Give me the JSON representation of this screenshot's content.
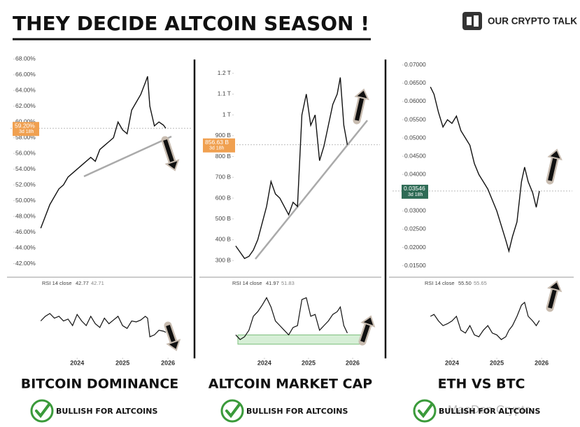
{
  "header": {
    "title": "THEY DECIDE ALTCOIN SEASON !",
    "brand": "OUR CRYPTO TALK",
    "watermark": "MaoDen Crypto"
  },
  "chart_data": [
    {
      "type": "line",
      "caption": "BITCOIN DOMINANCE",
      "verdict": "BULLISH FOR ALTCOINS",
      "color": "#111111",
      "x": [
        2023.2,
        2023.3,
        2023.4,
        2023.5,
        2023.6,
        2023.7,
        2023.8,
        2023.9,
        2024.0,
        2024.1,
        2024.2,
        2024.3,
        2024.4,
        2024.5,
        2024.6,
        2024.7,
        2024.8,
        2024.9,
        2025.0,
        2025.1,
        2025.2,
        2025.3,
        2025.4,
        2025.5,
        2025.55,
        2025.6,
        2025.7,
        2025.8,
        2025.9,
        2025.95
      ],
      "values": [
        46.5,
        48,
        49.5,
        50.5,
        51.5,
        52,
        53,
        53.5,
        54,
        54.5,
        55,
        55.5,
        55,
        56.5,
        57,
        57.5,
        58,
        60,
        59,
        58.5,
        61.5,
        62.5,
        63.5,
        65,
        65.8,
        62,
        59.5,
        60,
        59.6,
        59.2
      ],
      "xlim": [
        2023.15,
        2026.49
      ],
      "xticks": [
        2024,
        2025,
        2026
      ],
      "ylim": [
        40.8,
        69.1
      ],
      "yticks": [
        {
          "value": 68,
          "label": "68.00%"
        },
        {
          "value": 66,
          "label": "66.00%"
        },
        {
          "value": 64,
          "label": "64.00%"
        },
        {
          "value": 62,
          "label": "62.00%"
        },
        {
          "value": 60,
          "label": "60.00%"
        },
        {
          "value": 58,
          "label": "58.00%"
        },
        {
          "value": 56,
          "label": "56.00%"
        },
        {
          "value": 54,
          "label": "54.00%"
        },
        {
          "value": 52,
          "label": "52.00%"
        },
        {
          "value": 50,
          "label": "50.00%"
        },
        {
          "value": 48,
          "label": "48.00%"
        },
        {
          "value": 46,
          "label": "46.00%"
        },
        {
          "value": 44,
          "label": "44.00%"
        },
        {
          "value": 42,
          "label": "42.00%"
        }
      ],
      "current": {
        "value": 59.2,
        "label": "59.20%",
        "countdown": "3d 18h",
        "color": "#f0a050"
      },
      "rsi": {
        "label": "RSI 14 close",
        "readout": [
          "42.77",
          "42.71"
        ],
        "ylim": [
          20,
          90
        ],
        "values": [
          55,
          60,
          63,
          58,
          60,
          55,
          57,
          50,
          62,
          55,
          50,
          60,
          52,
          48,
          58,
          52,
          56,
          60,
          50,
          47,
          55,
          54,
          56,
          60,
          58,
          38,
          40,
          45,
          44,
          42.77
        ]
      }
    },
    {
      "type": "line",
      "caption": "ALTCOIN MARKET CAP",
      "verdict": "BULLISH FOR ALTCOINS",
      "color": "#111111",
      "x": [
        2023.35,
        2023.45,
        2023.55,
        2023.65,
        2023.75,
        2023.85,
        2023.95,
        2024.05,
        2024.15,
        2024.25,
        2024.35,
        2024.45,
        2024.55,
        2024.65,
        2024.75,
        2024.85,
        2024.95,
        2025.05,
        2025.15,
        2025.25,
        2025.35,
        2025.45,
        2025.55,
        2025.65,
        2025.72,
        2025.8,
        2025.88
      ],
      "values": [
        370,
        340,
        310,
        320,
        350,
        400,
        480,
        560,
        680,
        620,
        600,
        560,
        520,
        580,
        560,
        1000,
        1100,
        950,
        1000,
        780,
        850,
        950,
        1050,
        1100,
        1180,
        950,
        856.63
      ],
      "xlim": [
        2023.32,
        2026.57
      ],
      "xticks": [
        2024,
        2025,
        2026
      ],
      "ylim": [
        240,
        1310
      ],
      "yticks": [
        {
          "value": 1200,
          "label": "1.2 T"
        },
        {
          "value": 1100,
          "label": "1.1 T"
        },
        {
          "value": 1000,
          "label": "1 T"
        },
        {
          "value": 900,
          "label": "900 B"
        },
        {
          "value": 800,
          "label": "800 B"
        },
        {
          "value": 700,
          "label": "700 B"
        },
        {
          "value": 600,
          "label": "600 B"
        },
        {
          "value": 500,
          "label": "500 B"
        },
        {
          "value": 400,
          "label": "400 B"
        },
        {
          "value": 300,
          "label": "300 B"
        }
      ],
      "current": {
        "value": 856.63,
        "label": "856.63 B",
        "countdown": "3d 18h",
        "color": "#f0a050"
      },
      "rsi": {
        "label": "RSI 14 close",
        "readout": [
          "41.97",
          "51.83"
        ],
        "ylim": [
          20,
          90
        ],
        "values": [
          40,
          35,
          38,
          45,
          60,
          65,
          72,
          80,
          70,
          55,
          50,
          45,
          40,
          48,
          50,
          78,
          80,
          60,
          62,
          45,
          50,
          55,
          62,
          65,
          70,
          50,
          41.97
        ]
      }
    },
    {
      "type": "line",
      "caption": "ETH VS BTC",
      "verdict": "BULLISH FOR ALTCOINS",
      "color": "#111111",
      "x": [
        2023.52,
        2023.6,
        2023.7,
        2023.8,
        2023.9,
        2024.0,
        2024.1,
        2024.2,
        2024.3,
        2024.4,
        2024.5,
        2024.6,
        2024.7,
        2024.8,
        2024.9,
        2025.0,
        2025.1,
        2025.2,
        2025.27,
        2025.35,
        2025.45,
        2025.55,
        2025.62,
        2025.7,
        2025.8,
        2025.88,
        2025.95
      ],
      "values": [
        0.064,
        0.062,
        0.057,
        0.053,
        0.055,
        0.054,
        0.056,
        0.052,
        0.05,
        0.048,
        0.043,
        0.04,
        0.038,
        0.036,
        0.033,
        0.03,
        0.026,
        0.022,
        0.019,
        0.023,
        0.027,
        0.038,
        0.042,
        0.038,
        0.035,
        0.031,
        0.03546
      ],
      "xlim": [
        2023.47,
        2026.59
      ],
      "xticks": [
        2024,
        2025,
        2026
      ],
      "ylim": [
        0.013,
        0.074
      ],
      "yticks": [
        {
          "value": 0.07,
          "label": "0.07000"
        },
        {
          "value": 0.065,
          "label": "0.06500"
        },
        {
          "value": 0.06,
          "label": "0.06000"
        },
        {
          "value": 0.055,
          "label": "0.05500"
        },
        {
          "value": 0.05,
          "label": "0.05000"
        },
        {
          "value": 0.045,
          "label": "0.04500"
        },
        {
          "value": 0.04,
          "label": "0.04000"
        },
        {
          "value": 0.035,
          "label": "0.03500"
        },
        {
          "value": 0.03,
          "label": "0.03000"
        },
        {
          "value": 0.025,
          "label": "0.02500"
        },
        {
          "value": 0.02,
          "label": "0.02000"
        },
        {
          "value": 0.015,
          "label": "0.01500"
        }
      ],
      "current": {
        "value": 0.03546,
        "label": "0.03546",
        "countdown": "3d 18h",
        "color": "#2e6b55"
      },
      "rsi": {
        "label": "RSI 14 close",
        "readout": [
          "55.50",
          "55.65"
        ],
        "ylim": [
          20,
          90
        ],
        "values": [
          60,
          62,
          55,
          50,
          52,
          55,
          60,
          45,
          42,
          50,
          40,
          38,
          45,
          50,
          42,
          40,
          35,
          38,
          45,
          50,
          60,
          72,
          75,
          60,
          55,
          50,
          55.5
        ]
      }
    }
  ]
}
